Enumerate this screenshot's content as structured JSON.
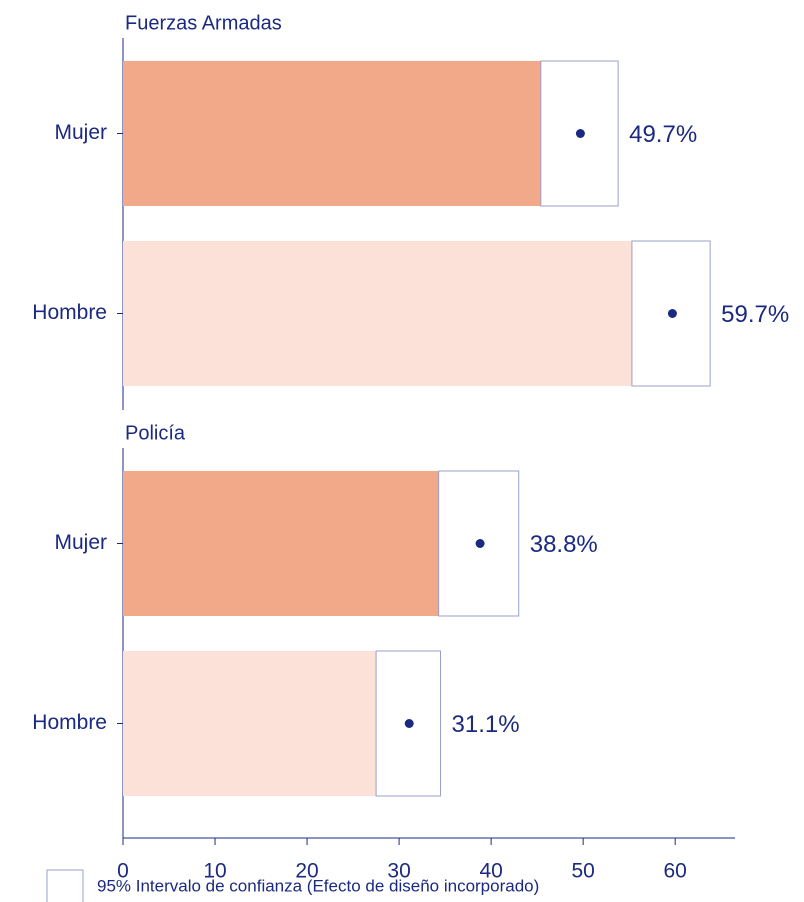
{
  "chart_data": [
    {
      "type": "bar",
      "title": "Fuerzas Armadas",
      "categories": [
        "Mujer",
        "Hombre"
      ],
      "values": [
        49.7,
        59.7
      ],
      "value_labels": [
        "49.7%",
        "59.7%"
      ],
      "ci_low": [
        45.4,
        55.3
      ],
      "ci_high": [
        53.8,
        63.8
      ],
      "colors": [
        "#f2a98a",
        "#fbe1d7"
      ],
      "xlim": [
        0,
        66.5
      ]
    },
    {
      "type": "bar",
      "title": "Policía",
      "categories": [
        "Mujer",
        "Hombre"
      ],
      "values": [
        38.8,
        31.1
      ],
      "value_labels": [
        "38.8%",
        "31.1%"
      ],
      "ci_low": [
        34.3,
        27.5
      ],
      "ci_high": [
        43.0,
        34.5
      ],
      "colors": [
        "#f2a98a",
        "#fbe1d7"
      ],
      "xlim": [
        0,
        66.5
      ],
      "xticks": [
        0,
        10,
        20,
        30,
        40,
        50,
        60
      ],
      "legend": "95% Intervalo de confianza (Efecto de diseño incorporado)"
    }
  ]
}
